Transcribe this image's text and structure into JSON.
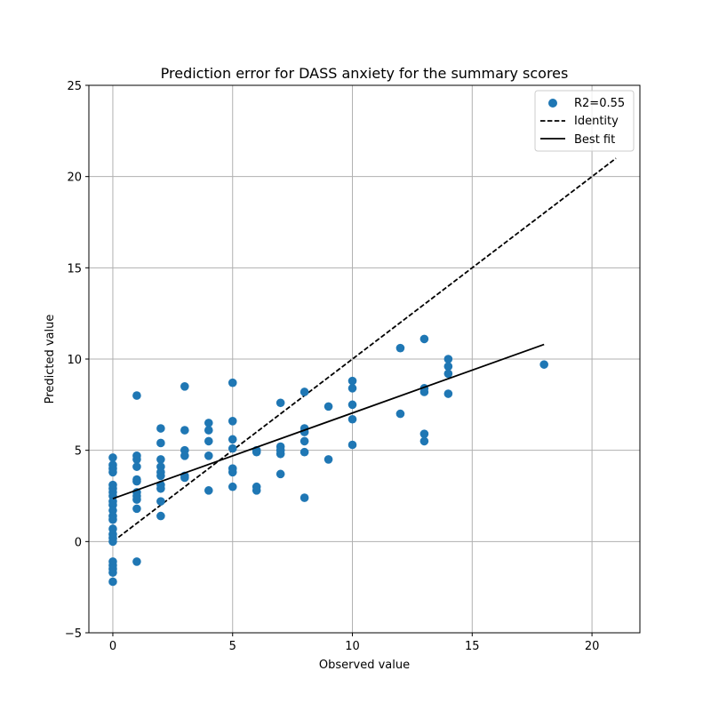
{
  "chart_data": {
    "type": "scatter",
    "title": "Prediction error for DASS anxiety for the summary scores",
    "xlabel": "Observed value",
    "ylabel": "Predicted value",
    "xlim": [
      -1,
      22
    ],
    "ylim": [
      -5,
      25
    ],
    "xticks": [
      0,
      5,
      10,
      15,
      20
    ],
    "yticks": [
      -5,
      0,
      5,
      10,
      15,
      20,
      25
    ],
    "grid": true,
    "legend_position": "top-right",
    "colors": {
      "points": "#1f77b4",
      "identity": "#000000",
      "best_fit": "#000000",
      "grid": "#b0b0b0"
    },
    "series": [
      {
        "name": "R2=0.55",
        "kind": "scatter",
        "points": [
          [
            0,
            4.6
          ],
          [
            0,
            4.2
          ],
          [
            0,
            4.0
          ],
          [
            0,
            3.8
          ],
          [
            0,
            3.1
          ],
          [
            0,
            2.9
          ],
          [
            0,
            2.7
          ],
          [
            0,
            2.5
          ],
          [
            0,
            2.2
          ],
          [
            0,
            2.0
          ],
          [
            0,
            1.7
          ],
          [
            0,
            1.4
          ],
          [
            0,
            1.2
          ],
          [
            0,
            0.7
          ],
          [
            0,
            0.4
          ],
          [
            0,
            0.2
          ],
          [
            0,
            0.0
          ],
          [
            0,
            -1.1
          ],
          [
            0,
            -1.3
          ],
          [
            0,
            -1.5
          ],
          [
            0,
            -1.7
          ],
          [
            0,
            -2.2
          ],
          [
            1,
            8.0
          ],
          [
            1,
            4.7
          ],
          [
            1,
            4.5
          ],
          [
            1,
            4.1
          ],
          [
            1,
            3.4
          ],
          [
            1,
            3.3
          ],
          [
            1,
            2.7
          ],
          [
            1,
            2.5
          ],
          [
            1,
            2.3
          ],
          [
            1,
            1.8
          ],
          [
            1,
            -1.1
          ],
          [
            2,
            6.2
          ],
          [
            2,
            5.4
          ],
          [
            2,
            4.5
          ],
          [
            2,
            4.1
          ],
          [
            2,
            3.8
          ],
          [
            2,
            3.6
          ],
          [
            2,
            3.1
          ],
          [
            2,
            2.9
          ],
          [
            2,
            2.2
          ],
          [
            2,
            1.4
          ],
          [
            3,
            8.5
          ],
          [
            3,
            6.1
          ],
          [
            3,
            5.0
          ],
          [
            3,
            4.7
          ],
          [
            3,
            3.6
          ],
          [
            3,
            3.5
          ],
          [
            4,
            6.5
          ],
          [
            4,
            6.1
          ],
          [
            4,
            5.5
          ],
          [
            4,
            4.7
          ],
          [
            4,
            2.8
          ],
          [
            5,
            8.7
          ],
          [
            5,
            6.6
          ],
          [
            5,
            5.6
          ],
          [
            5,
            5.1
          ],
          [
            5,
            4.0
          ],
          [
            5,
            3.8
          ],
          [
            5,
            3.0
          ],
          [
            6,
            5.0
          ],
          [
            6,
            4.9
          ],
          [
            6,
            3.0
          ],
          [
            6,
            2.8
          ],
          [
            7,
            7.6
          ],
          [
            7,
            5.2
          ],
          [
            7,
            5.0
          ],
          [
            7,
            4.8
          ],
          [
            7,
            3.7
          ],
          [
            8,
            8.2
          ],
          [
            8,
            6.2
          ],
          [
            8,
            6.0
          ],
          [
            8,
            5.5
          ],
          [
            8,
            4.9
          ],
          [
            8,
            2.4
          ],
          [
            9,
            7.4
          ],
          [
            9,
            4.5
          ],
          [
            10,
            8.8
          ],
          [
            10,
            8.4
          ],
          [
            10,
            7.5
          ],
          [
            10,
            6.7
          ],
          [
            10,
            5.3
          ],
          [
            12,
            10.6
          ],
          [
            12,
            7.0
          ],
          [
            13,
            11.1
          ],
          [
            13,
            8.4
          ],
          [
            13,
            8.2
          ],
          [
            13,
            5.9
          ],
          [
            13,
            5.5
          ],
          [
            14,
            10.0
          ],
          [
            14,
            9.6
          ],
          [
            14,
            9.2
          ],
          [
            14,
            8.1
          ],
          [
            18,
            9.7
          ]
        ]
      },
      {
        "name": "Identity",
        "kind": "line",
        "style": "dashed",
        "x": [
          0,
          21
        ],
        "y": [
          0,
          21
        ]
      },
      {
        "name": "Best fit",
        "kind": "line",
        "style": "solid",
        "x": [
          0,
          18
        ],
        "y": [
          2.35,
          10.8
        ]
      }
    ]
  }
}
